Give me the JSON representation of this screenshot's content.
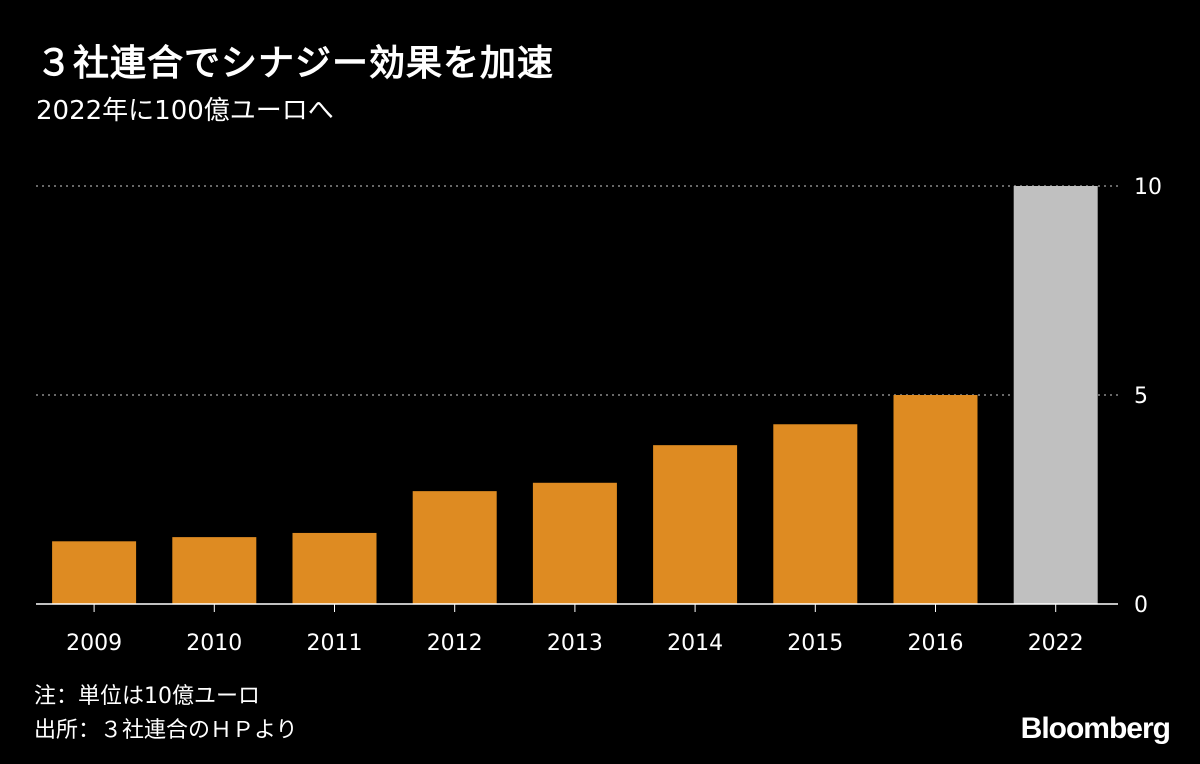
{
  "header": {
    "title": "３社連合でシナジー効果を加速",
    "subtitle": "2022年に100億ユーロへ"
  },
  "footer": {
    "note": "注：単位は10億ユーロ",
    "source": "出所：３社連合のＨＰより",
    "brand": "Bloomberg"
  },
  "colors": {
    "background": "#000000",
    "bar": "#de8b22",
    "bar_highlight": "#c0c0c0",
    "text": "#ffffff",
    "grid": "#8a8a8a"
  },
  "chart_data": {
    "type": "bar",
    "title": "３社連合でシナジー効果を加速",
    "subtitle": "2022年に100億ユーロへ",
    "xlabel": "",
    "ylabel": "",
    "unit": "10億ユーロ",
    "categories": [
      "2009",
      "2010",
      "2011",
      "2012",
      "2013",
      "2014",
      "2015",
      "2016",
      "2022"
    ],
    "values": [
      1.5,
      1.6,
      1.7,
      2.7,
      2.9,
      3.8,
      4.3,
      5.0,
      10.0
    ],
    "highlight": [
      "2022"
    ],
    "ylim": [
      0,
      10
    ],
    "yticks": [
      0,
      5,
      10
    ],
    "grid": true,
    "y_axis_side": "right"
  }
}
